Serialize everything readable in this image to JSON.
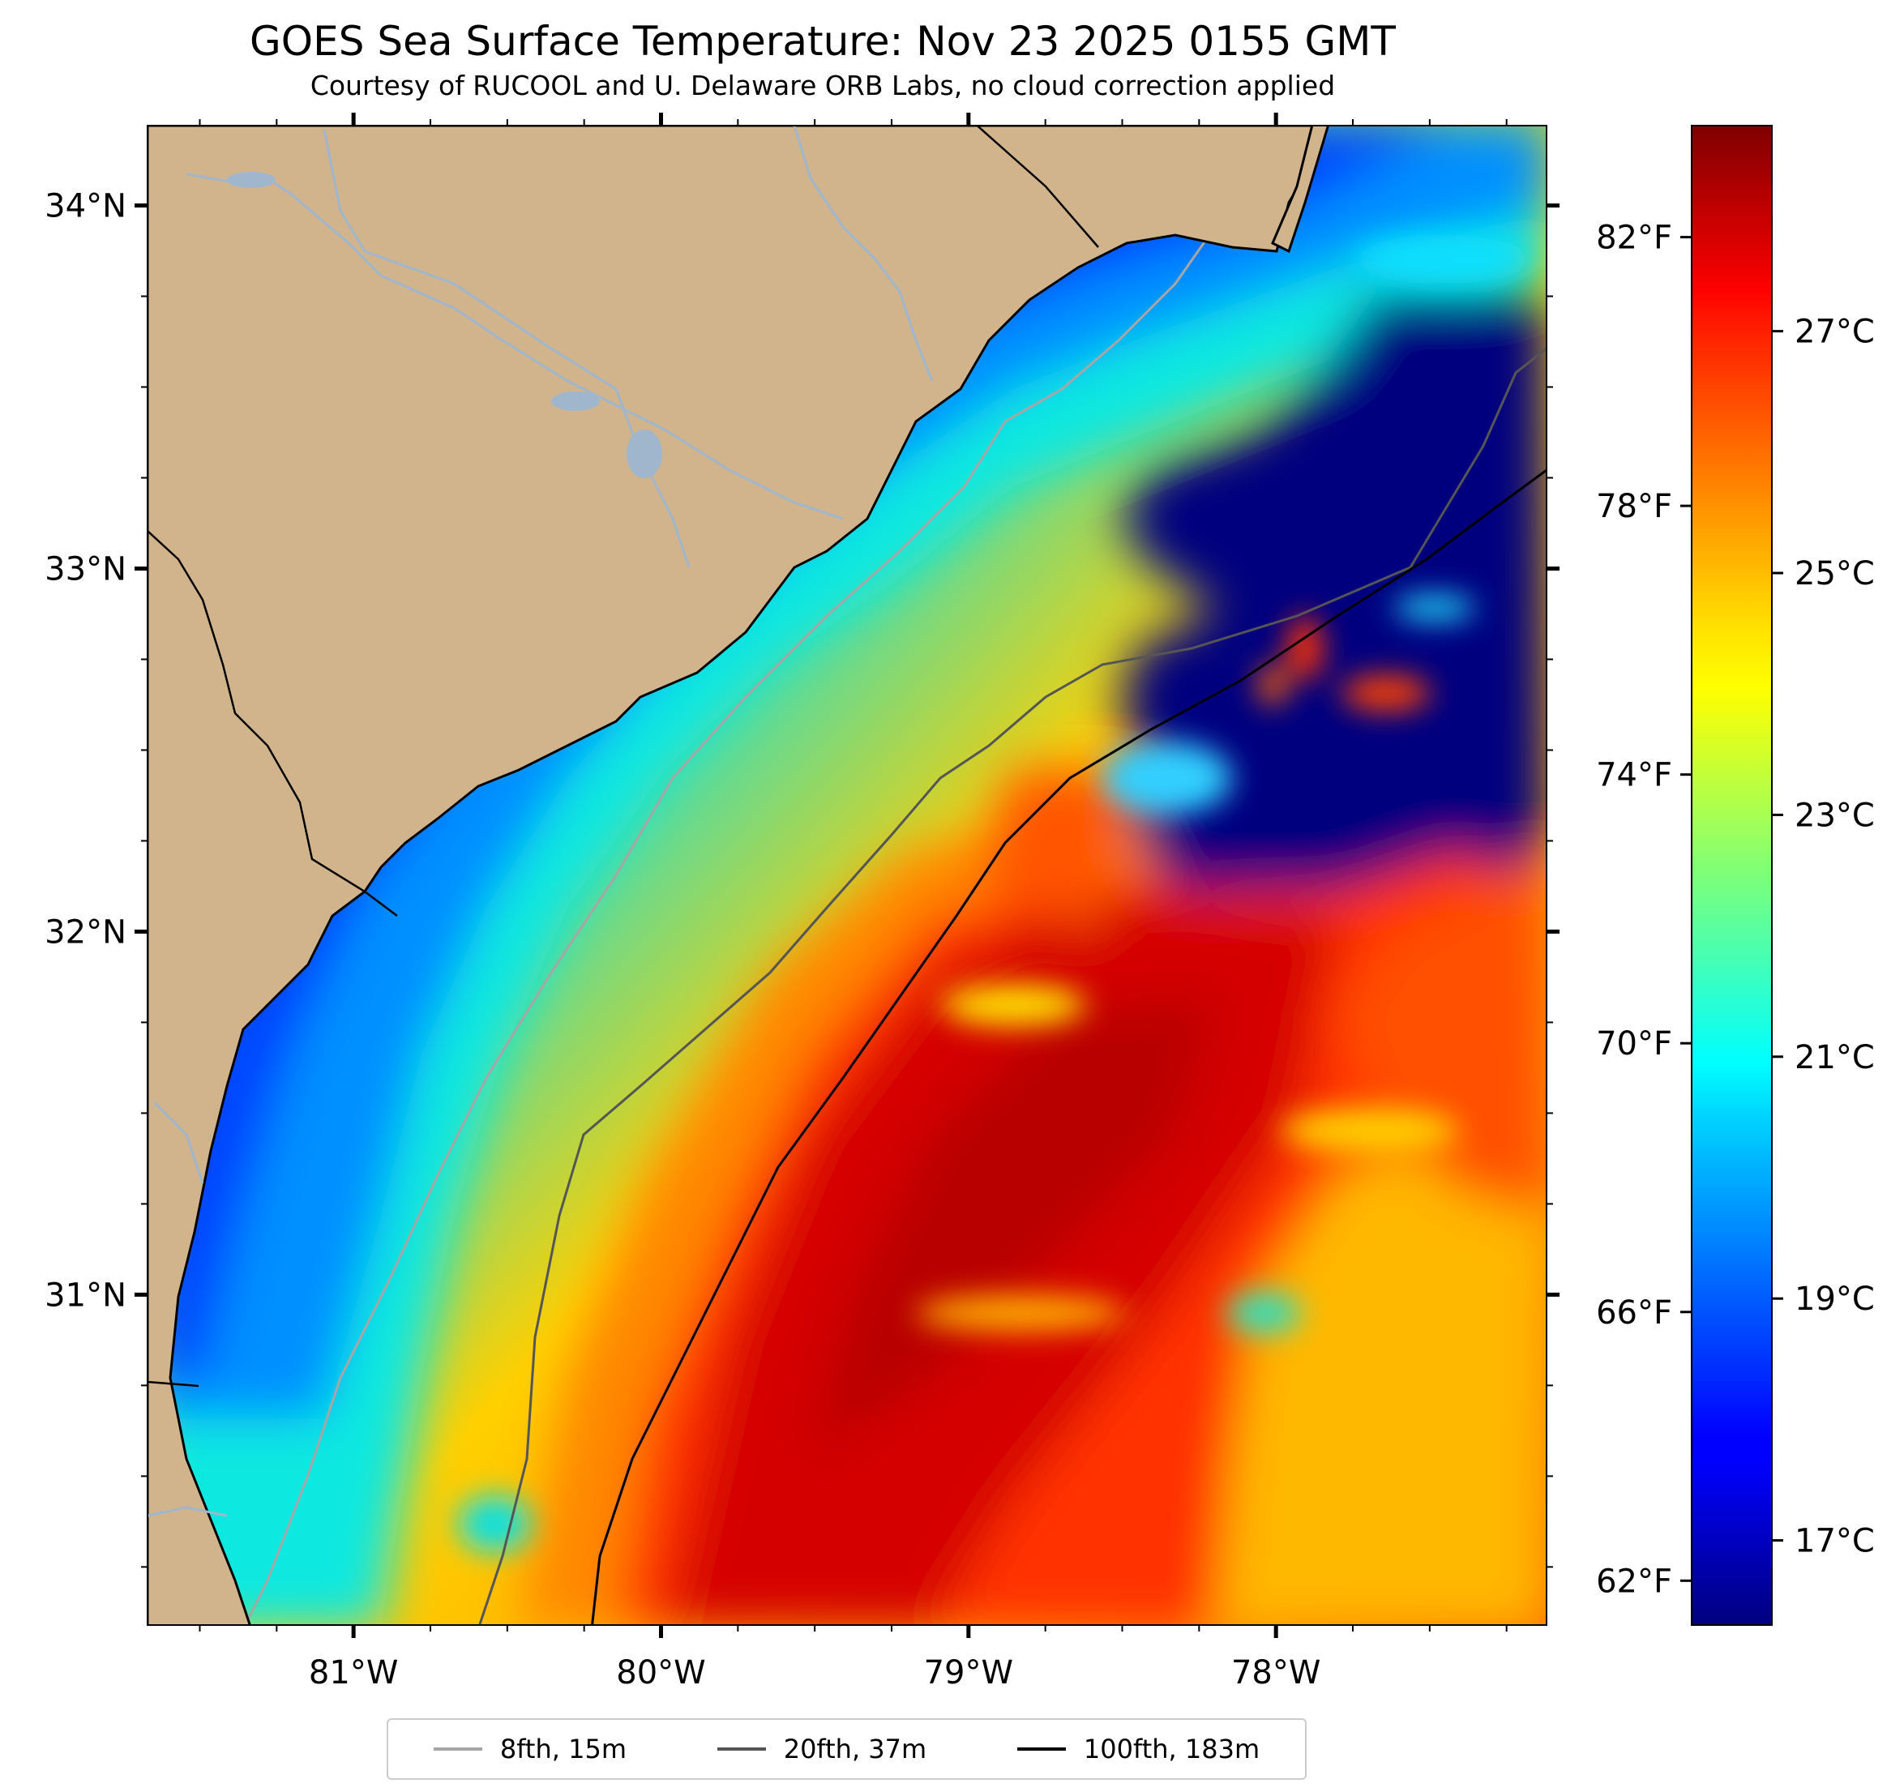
{
  "title": "GOES Sea Surface Temperature: Nov 23 2025 0155 GMT",
  "subtitle": "Courtesy of RUCOOL and U. Delaware ORB Labs, no cloud correction applied",
  "map": {
    "lon_range": [
      -81.67,
      -77.12
    ],
    "lat_range": [
      30.09,
      34.22
    ],
    "lon_ticks": [
      {
        "value": -81,
        "label": "81°W"
      },
      {
        "value": -80,
        "label": "80°W"
      },
      {
        "value": -79,
        "label": "79°W"
      },
      {
        "value": -78,
        "label": "78°W"
      }
    ],
    "lat_ticks": [
      {
        "value": 34,
        "label": "34°N"
      },
      {
        "value": 33,
        "label": "33°N"
      },
      {
        "value": 32,
        "label": "32°N"
      },
      {
        "value": 31,
        "label": "31°N"
      }
    ],
    "colors": {
      "land": "#d2b48c",
      "rivers": "#9fb6cd",
      "coast": "#000000"
    }
  },
  "colorbar": {
    "colormap": "jet",
    "range_c": [
      16.3,
      28.7
    ],
    "celsius_ticks": [
      {
        "value": 17,
        "label": "17°C"
      },
      {
        "value": 19,
        "label": "19°C"
      },
      {
        "value": 21,
        "label": "21°C"
      },
      {
        "value": 23,
        "label": "23°C"
      },
      {
        "value": 25,
        "label": "25°C"
      },
      {
        "value": 27,
        "label": "27°C"
      }
    ],
    "fahrenheit_ticks": [
      {
        "value": 62,
        "label": "62°F"
      },
      {
        "value": 66,
        "label": "66°F"
      },
      {
        "value": 70,
        "label": "70°F"
      },
      {
        "value": 74,
        "label": "74°F"
      },
      {
        "value": 78,
        "label": "78°F"
      },
      {
        "value": 82,
        "label": "82°F"
      }
    ]
  },
  "legend": {
    "placement": "bottom-center",
    "items": [
      {
        "label": "8fth, 15m",
        "color": "#a6a6a6"
      },
      {
        "label": "20fth, 37m",
        "color": "#555555"
      },
      {
        "label": "100fth, 183m",
        "color": "#000000"
      }
    ]
  }
}
